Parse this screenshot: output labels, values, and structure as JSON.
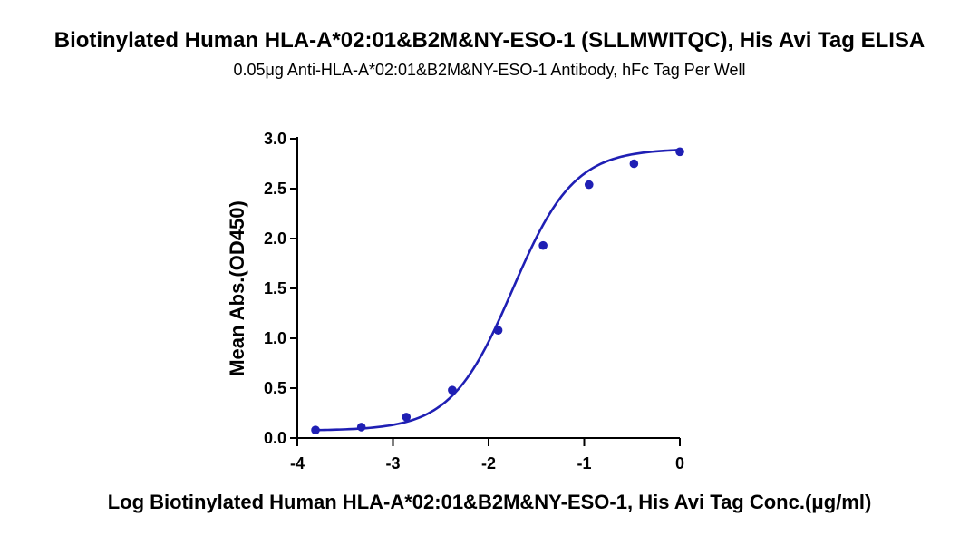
{
  "chart_data": {
    "type": "scatter",
    "title": "Biotinylated Human HLA-A*02:01&B2M&NY-ESO-1 (SLLMWITQC), His Avi Tag ELISA",
    "subtitle": "0.05μg Anti-HLA-A*02:01&B2M&NY-ESO-1 Antibody, hFc Tag Per Well",
    "xlabel": "Log Biotinylated Human HLA-A*02:01&B2M&NY-ESO-1, His Avi Tag Conc.(μg/ml)",
    "ylabel": "Mean Abs.(OD450)",
    "xlim": [
      -4,
      0
    ],
    "ylim": [
      0,
      3.0
    ],
    "xticks": [
      "-4",
      "-3",
      "-2",
      "-1",
      "0"
    ],
    "yticks": [
      "0.0",
      "0.5",
      "1.0",
      "1.5",
      "2.0",
      "2.5",
      "3.0"
    ],
    "grid": false,
    "color": "#1f1fb4",
    "series": [
      {
        "x": [
          -3.81,
          -3.33,
          -2.86,
          -2.38,
          -1.9,
          -1.43,
          -0.95,
          -0.48,
          0.0
        ],
        "y": [
          0.08,
          0.11,
          0.21,
          0.48,
          1.08,
          1.93,
          2.54,
          2.75,
          2.87
        ],
        "fit": "four-parameter logistic"
      }
    ]
  }
}
